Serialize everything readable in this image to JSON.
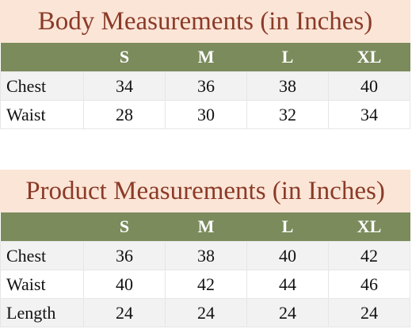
{
  "tables": [
    {
      "title": "Body Measurements (in Inches)",
      "headers": [
        "S",
        "M",
        "L",
        "XL"
      ],
      "rows": [
        {
          "label": "Chest",
          "values": [
            34,
            36,
            38,
            40
          ]
        },
        {
          "label": "Waist",
          "values": [
            28,
            30,
            32,
            34
          ]
        }
      ]
    },
    {
      "title": "Product Measurements (in Inches)",
      "headers": [
        "S",
        "M",
        "L",
        "XL"
      ],
      "rows": [
        {
          "label": "Chest",
          "values": [
            36,
            38,
            40,
            42
          ]
        },
        {
          "label": "Waist",
          "values": [
            40,
            42,
            44,
            46
          ]
        },
        {
          "label": "Length",
          "values": [
            24,
            24,
            24,
            24
          ]
        }
      ]
    }
  ]
}
